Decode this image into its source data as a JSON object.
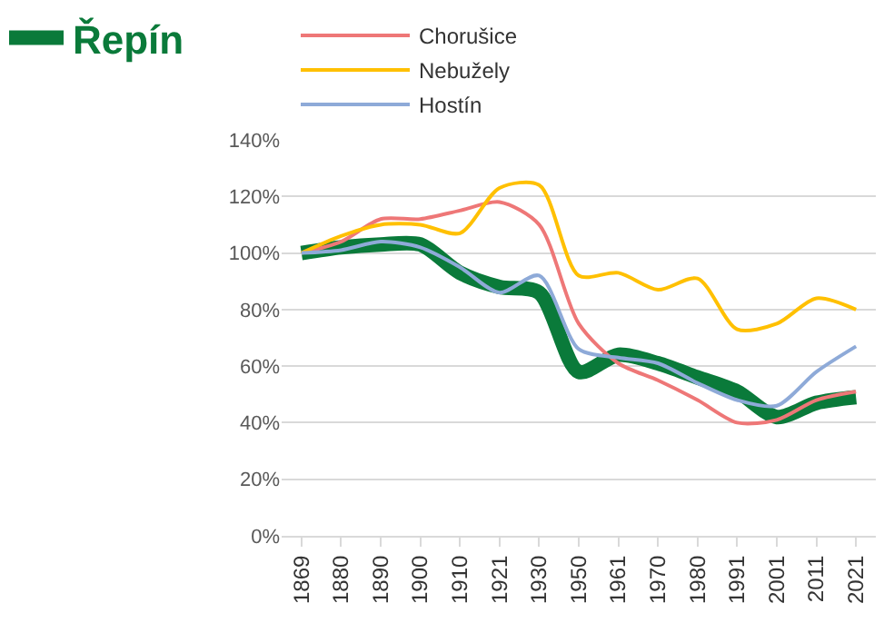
{
  "chart_data": {
    "type": "line",
    "categories": [
      "1869",
      "1880",
      "1890",
      "1900",
      "1910",
      "1921",
      "1930",
      "1950",
      "1961",
      "1970",
      "1980",
      "1991",
      "2001",
      "2011",
      "2021"
    ],
    "series": [
      {
        "name": "Chorušice",
        "color": "#ee7777",
        "values": [
          100,
          104,
          112,
          112,
          115,
          118,
          110,
          75,
          61,
          55,
          48,
          40,
          41,
          48,
          51
        ]
      },
      {
        "name": "Nebužely",
        "color": "#ffc000",
        "values": [
          100,
          106,
          110,
          110,
          107,
          123,
          124,
          92,
          93,
          87,
          91,
          73,
          75,
          84,
          80
        ]
      },
      {
        "name": "Hostín",
        "color": "#8eaad8",
        "values": [
          100,
          101,
          104,
          102,
          95,
          86,
          92,
          66,
          63,
          61,
          54,
          48,
          46,
          58,
          67
        ]
      },
      {
        "name": "Řepín",
        "color": "#0a7a3a",
        "values": [
          100,
          102,
          103,
          103,
          93,
          88,
          86,
          58,
          64,
          61,
          56,
          51,
          42,
          47,
          49
        ]
      }
    ],
    "ylim": [
      0,
      140
    ],
    "yticks": [
      {
        "value": 0,
        "label": "0%"
      },
      {
        "value": 20,
        "label": "20%"
      },
      {
        "value": 40,
        "label": "40%"
      },
      {
        "value": 60,
        "label": "60%"
      },
      {
        "value": 80,
        "label": "80%"
      },
      {
        "value": 100,
        "label": "100%"
      },
      {
        "value": 120,
        "label": "120%"
      },
      {
        "value": 140,
        "label": "140%"
      }
    ],
    "grid": "y",
    "legend": "top",
    "marker": "none",
    "line_style": "solid"
  }
}
